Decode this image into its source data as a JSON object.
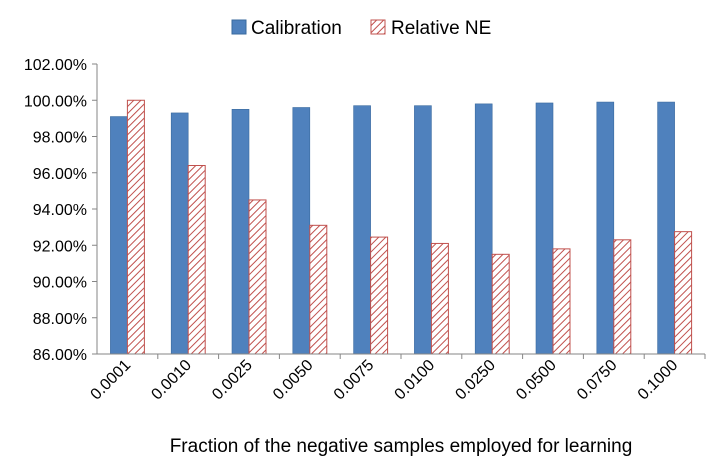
{
  "chart_data": {
    "type": "bar",
    "title": "",
    "xlabel": "Fraction of the negative samples employed for learning",
    "ylabel": "",
    "categories": [
      "0.0001",
      "0.0010",
      "0.0025",
      "0.0050",
      "0.0075",
      "0.0100",
      "0.0250",
      "0.0500",
      "0.0750",
      "0.1000"
    ],
    "series": [
      {
        "name": "Calibration",
        "color": "#4f81bd",
        "pattern": "solid",
        "values": [
          99.1,
          99.3,
          99.5,
          99.6,
          99.7,
          99.7,
          99.8,
          99.85,
          99.9,
          99.9
        ]
      },
      {
        "name": "Relative NE",
        "color": "#c0504d",
        "pattern": "diagonal-hatch",
        "values": [
          100.0,
          96.4,
          94.5,
          93.1,
          92.45,
          92.1,
          91.5,
          91.8,
          92.3,
          92.75
        ]
      }
    ],
    "ylim": [
      86,
      102
    ],
    "yticks": [
      "86.00%",
      "88.00%",
      "90.00%",
      "92.00%",
      "94.00%",
      "96.00%",
      "98.00%",
      "100.00%",
      "102.00%"
    ],
    "grid": false,
    "legend": "top-center"
  }
}
